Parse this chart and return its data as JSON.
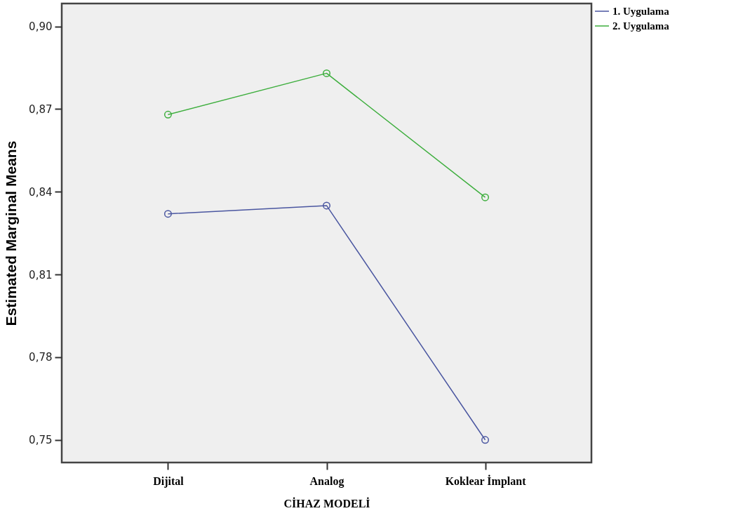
{
  "chart_data": {
    "type": "line",
    "xlabel": "CİHAZ MODELİ",
    "ylabel": "Estimated Marginal Means",
    "categories": [
      "Dijital",
      "Analog",
      "Koklear İmplant"
    ],
    "series": [
      {
        "name": "1. Uygulama",
        "color": "#4a56a0",
        "values": [
          0.832,
          0.835,
          0.75
        ]
      },
      {
        "name": "2. Uygulama",
        "color": "#3dae3d",
        "values": [
          0.868,
          0.883,
          0.838
        ]
      }
    ],
    "ylim": [
      0.7418,
      0.9083
    ],
    "yticks": [
      {
        "value": 0.75,
        "label": "0,75"
      },
      {
        "value": 0.78,
        "label": "0,78"
      },
      {
        "value": 0.81,
        "label": "0,81"
      },
      {
        "value": 0.84,
        "label": "0,84"
      },
      {
        "value": 0.87,
        "label": "0,87"
      },
      {
        "value": 0.9,
        "label": "0,90"
      }
    ],
    "marker": "circle",
    "line_style": "solid",
    "grid": false,
    "legend": "top right"
  }
}
